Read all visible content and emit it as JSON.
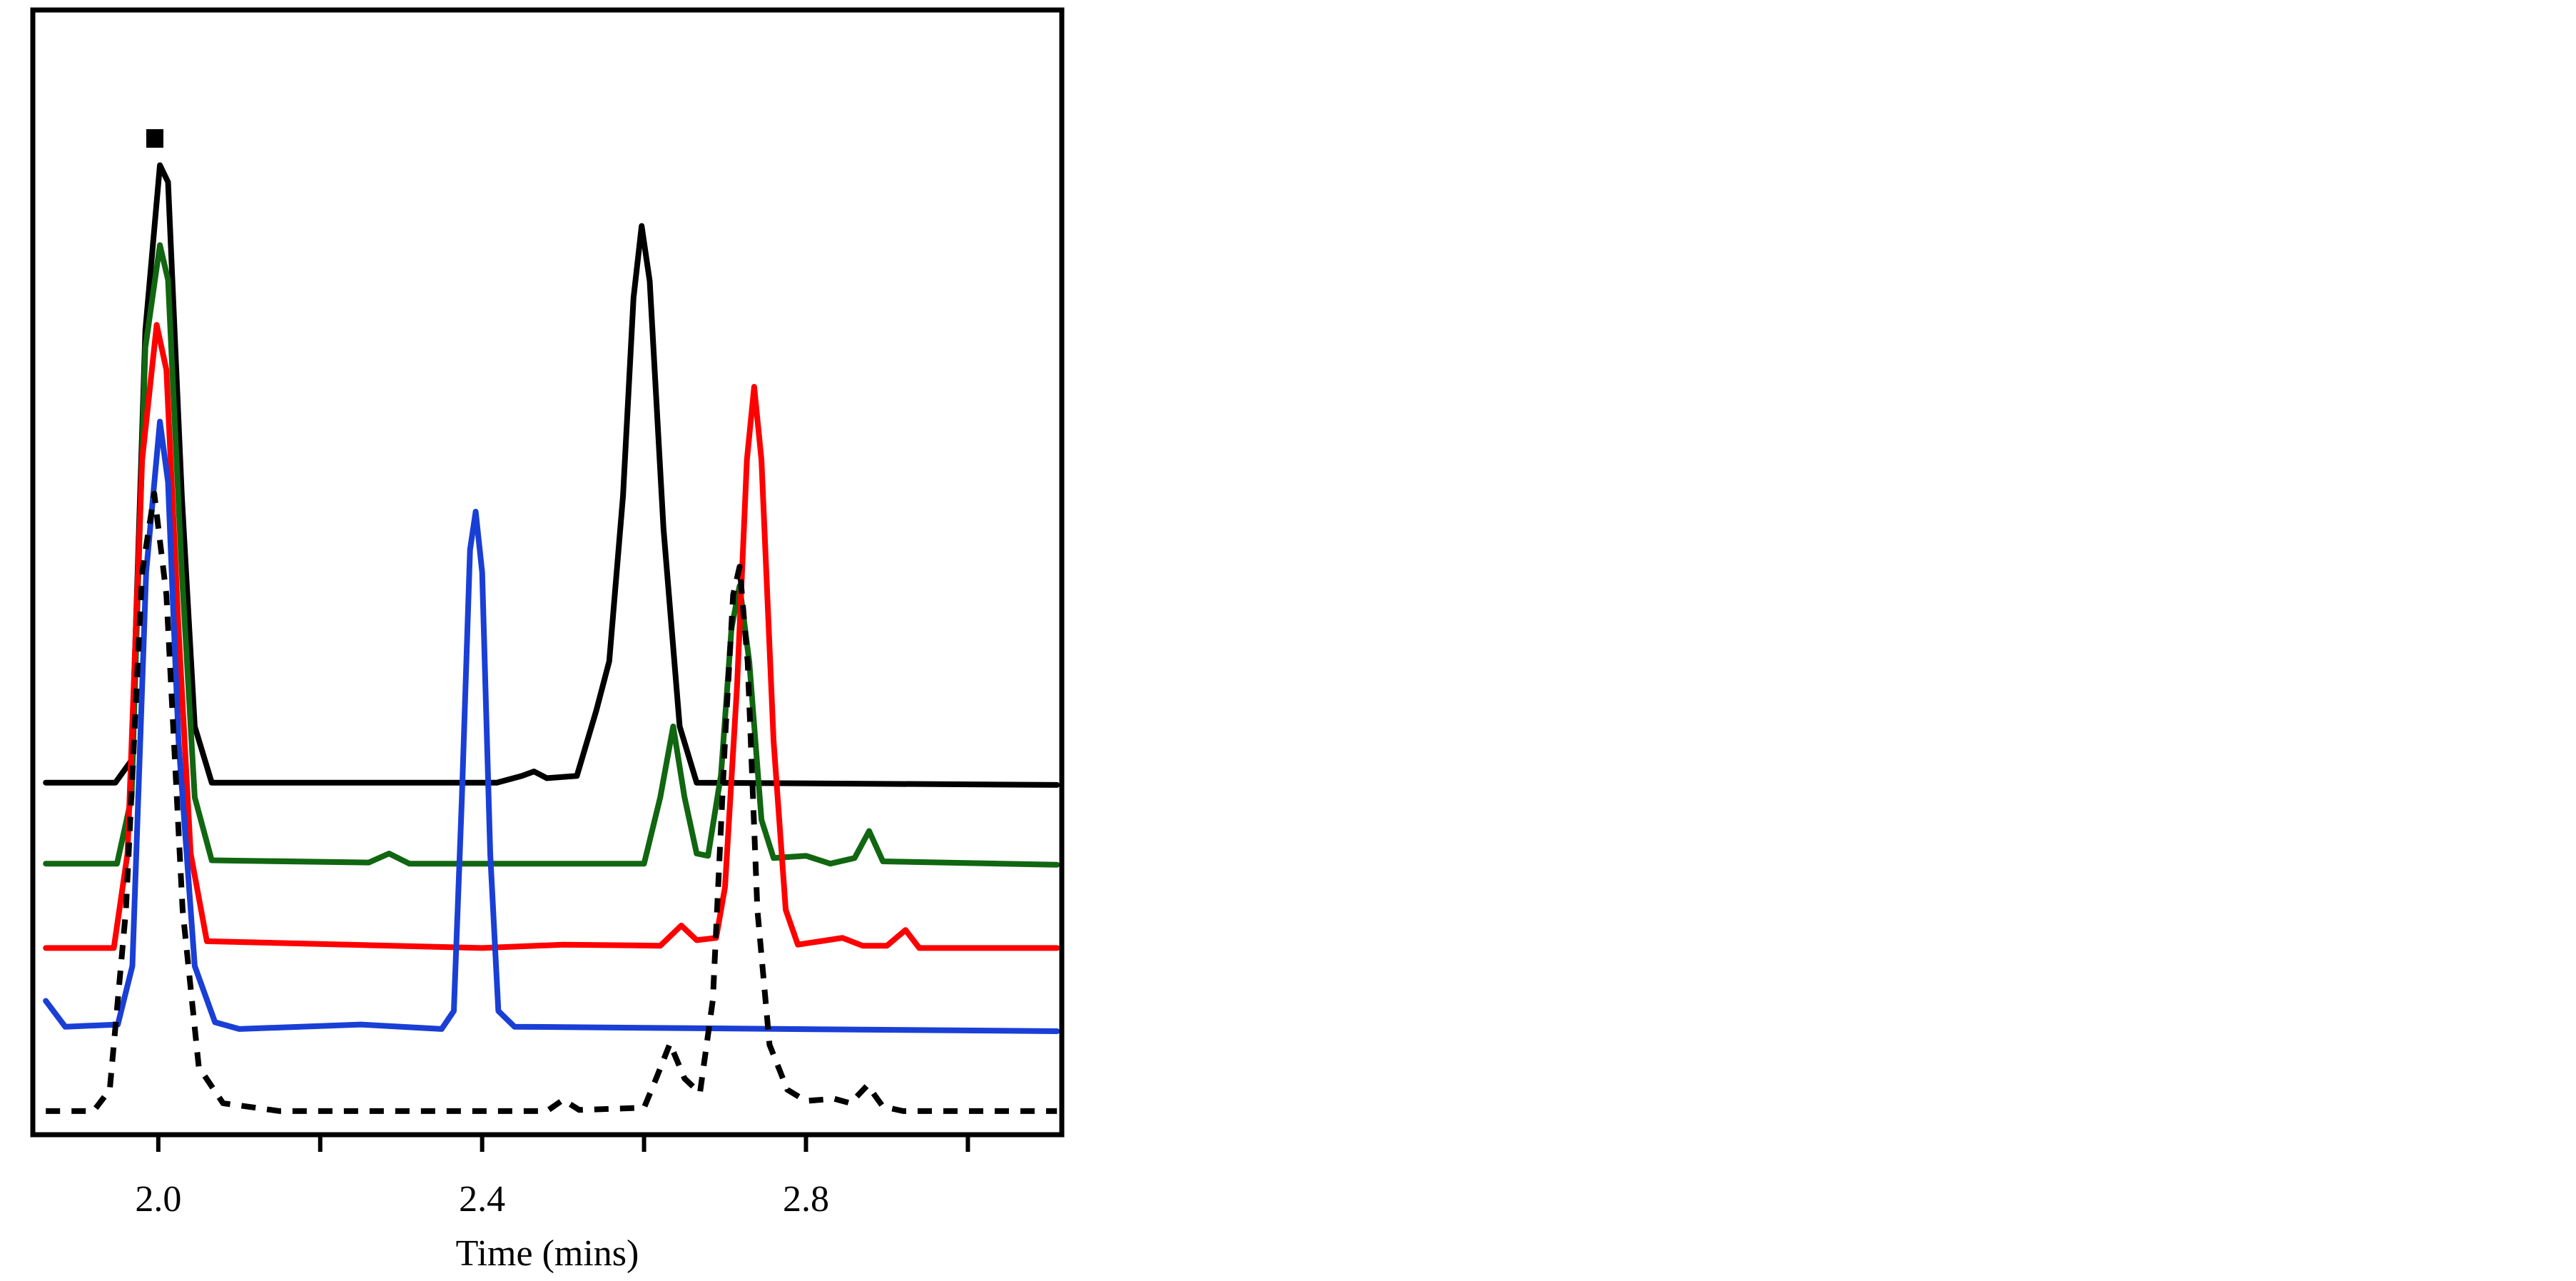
{
  "chart_data": {
    "type": "line",
    "xlabel": "Time (mins)",
    "xlim": [
      1.845,
      3.116
    ],
    "ylim": [
      0,
      100
    ],
    "xticks": [
      {
        "value": 2.0,
        "label": "2.0"
      },
      {
        "value": 2.2,
        "label": null
      },
      {
        "value": 2.4,
        "label": "2.4"
      },
      {
        "value": 2.6,
        "label": null
      },
      {
        "value": 2.8,
        "label": "2.8"
      },
      {
        "value": 3.0,
        "label": null
      }
    ],
    "series": [
      {
        "color": "#000000",
        "style": "solid",
        "x": [
          1.861,
          1.947,
          1.967,
          1.984,
          2.002,
          2.012,
          2.029,
          2.045,
          2.066,
          2.418,
          2.449,
          2.464,
          2.48,
          2.517,
          2.541,
          2.557,
          2.574,
          2.587,
          2.597,
          2.607,
          2.624,
          2.644,
          2.665,
          3.11
        ],
        "values": [
          31.3,
          31.3,
          33.3,
          71.5,
          86.2,
          84.7,
          56.8,
          36.3,
          31.3,
          31.3,
          31.9,
          32.3,
          31.7,
          31.9,
          37.7,
          42.1,
          56.8,
          74.4,
          80.8,
          75.9,
          53.9,
          36.3,
          31.3,
          31.1
        ]
      },
      {
        "color": "#116611",
        "style": "solid",
        "x": [
          1.861,
          1.949,
          1.967,
          1.984,
          2.002,
          2.012,
          2.029,
          2.045,
          2.066,
          2.26,
          2.285,
          2.31,
          2.6,
          2.62,
          2.636,
          2.65,
          2.665,
          2.679,
          2.695,
          2.708,
          2.718,
          2.73,
          2.745,
          2.76,
          2.8,
          2.83,
          2.86,
          2.878,
          2.895,
          3.11
        ],
        "values": [
          24.1,
          24.1,
          30,
          70,
          79.1,
          76,
          50,
          30,
          24.4,
          24.2,
          25.0,
          24.1,
          24.1,
          30,
          36.3,
          30,
          25,
          24.8,
          32,
          45,
          48.8,
          42,
          28,
          24.6,
          24.8,
          24.1,
          24.6,
          27.0,
          24.3,
          24.0
        ]
      },
      {
        "color": "#ff0000",
        "style": "solid",
        "x": [
          1.861,
          1.945,
          1.962,
          1.98,
          1.998,
          2.01,
          2.025,
          2.04,
          2.06,
          2.4,
          2.5,
          2.62,
          2.646,
          2.665,
          2.689,
          2.7,
          2.715,
          2.727,
          2.736,
          2.745,
          2.76,
          2.775,
          2.79,
          2.845,
          2.87,
          2.9,
          2.923,
          2.94,
          3.11
        ],
        "values": [
          16.6,
          16.6,
          25,
          60,
          72.0,
          68,
          45,
          25,
          17.2,
          16.6,
          16.9,
          16.8,
          18.6,
          17.3,
          17.5,
          22,
          40,
          60,
          66.5,
          60,
          35,
          20,
          16.9,
          17.5,
          16.8,
          16.8,
          18.2,
          16.6,
          16.6
        ]
      },
      {
        "color": "#1a3fd6",
        "style": "solid",
        "x": [
          1.861,
          1.885,
          1.95,
          1.968,
          1.985,
          2.002,
          2.012,
          2.025,
          2.045,
          2.07,
          2.1,
          2.25,
          2.35,
          2.365,
          2.375,
          2.385,
          2.392,
          2.4,
          2.41,
          2.42,
          2.44,
          3.11
        ],
        "values": [
          11.9,
          9.6,
          9.8,
          15,
          50,
          63.4,
          58,
          35,
          15,
          10,
          9.4,
          9.8,
          9.4,
          11,
          30,
          52,
          55.4,
          50,
          25,
          11,
          9.6,
          9.2
        ]
      },
      {
        "color": "#000000",
        "style": "dashed",
        "x": [
          1.861,
          1.92,
          1.94,
          1.96,
          1.98,
          1.995,
          2.01,
          2.03,
          2.05,
          2.08,
          2.15,
          2.48,
          2.5,
          2.52,
          2.6,
          2.615,
          2.632,
          2.65,
          2.669,
          2.685,
          2.7,
          2.71,
          2.718,
          2.728,
          2.74,
          2.755,
          2.777,
          2.8,
          2.835,
          2.855,
          2.876,
          2.895,
          2.92,
          3.11
        ],
        "values": [
          2.1,
          2.1,
          4,
          20,
          50,
          57,
          48,
          20,
          6,
          2.8,
          2.1,
          2.1,
          3.1,
          2.2,
          2.4,
          5,
          8.1,
          5,
          3.7,
          12,
          35,
          48,
          50.5,
          42,
          20,
          8,
          4.0,
          3,
          3.2,
          2.8,
          4.4,
          2.5,
          2.1,
          2.1
        ]
      }
    ]
  }
}
